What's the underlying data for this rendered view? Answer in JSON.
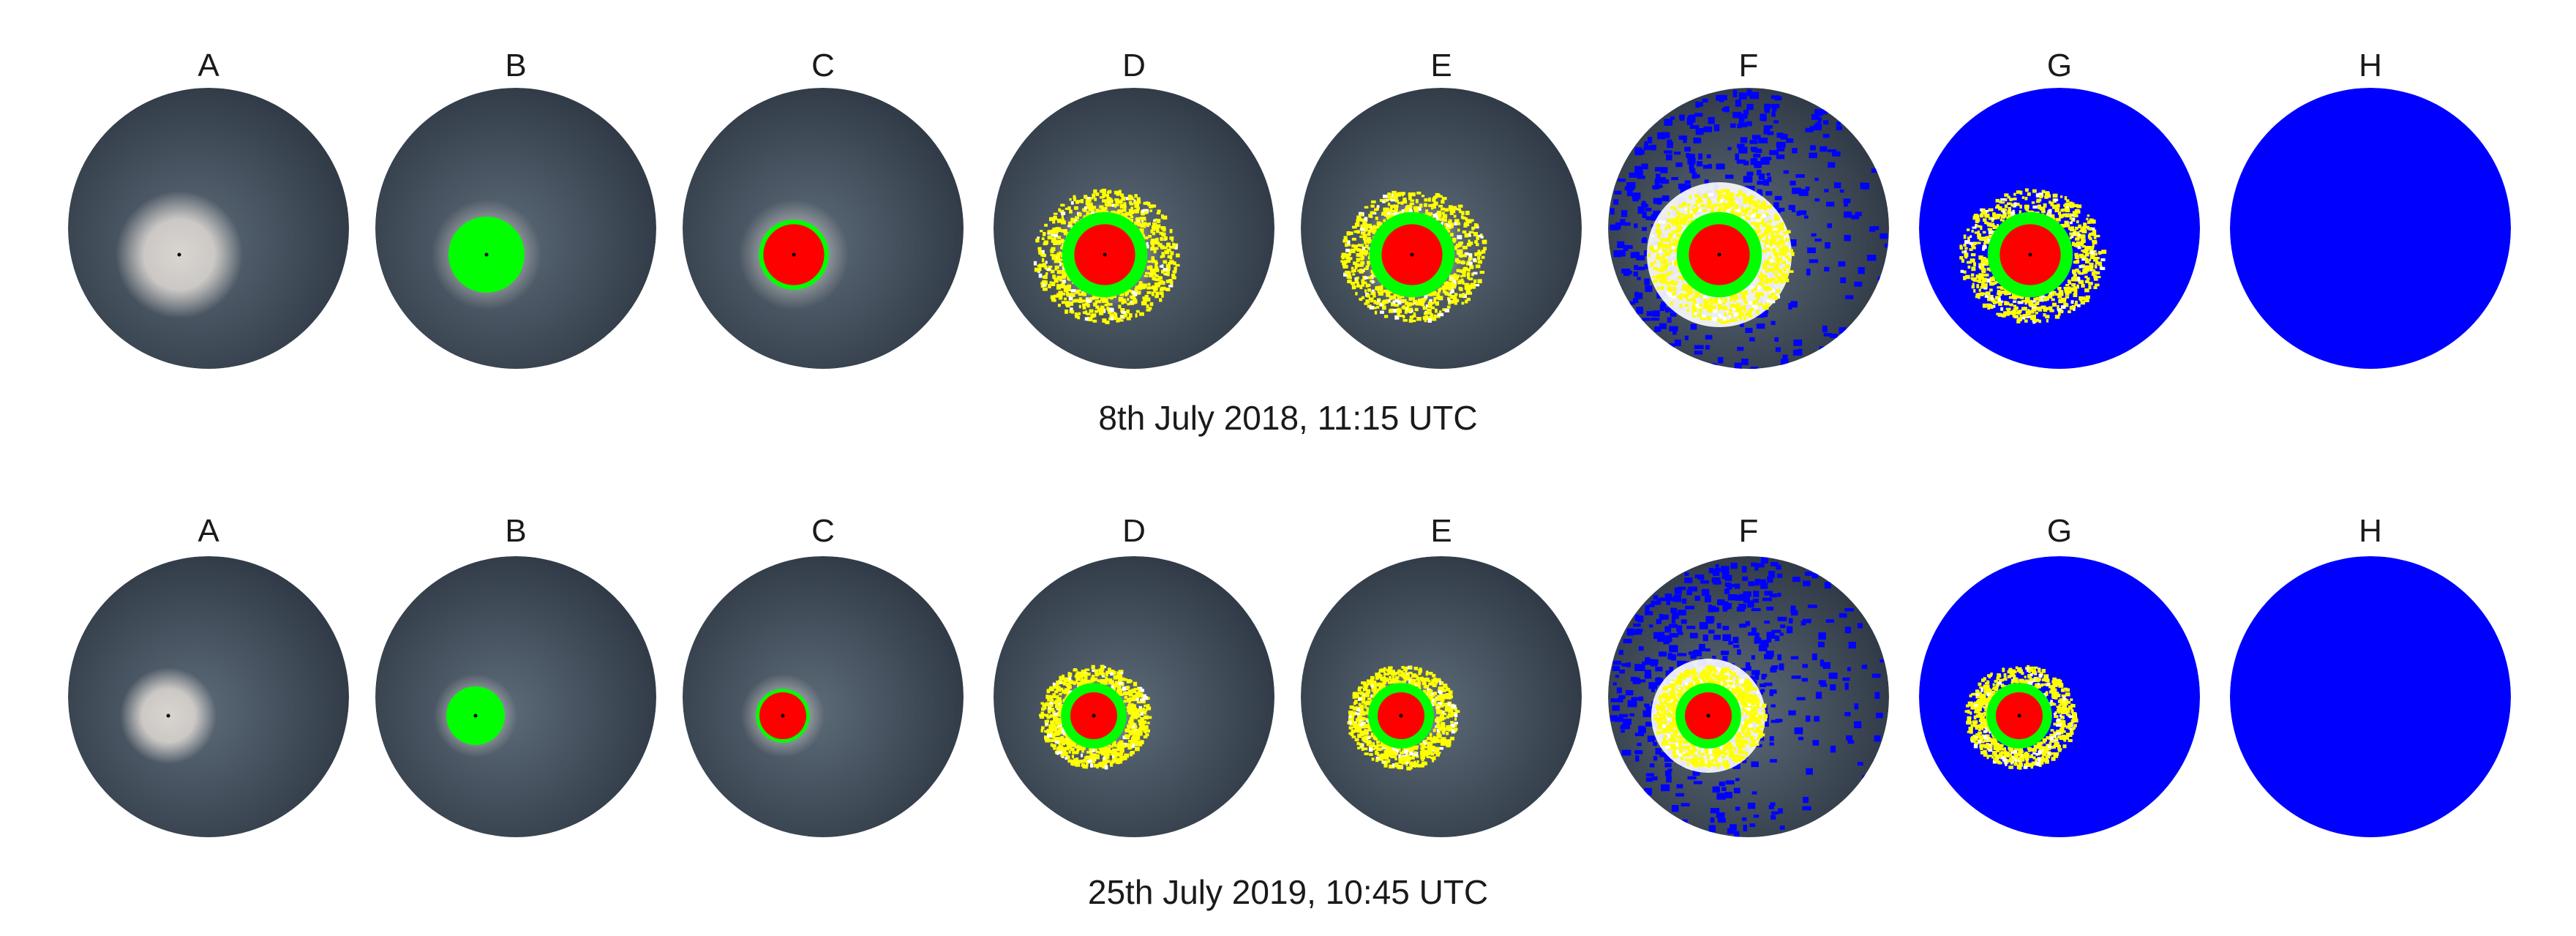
{
  "rows": [
    {
      "caption": "8th July 2018, 11:15 UTC",
      "panels": [
        {
          "label": "A",
          "stage": "raw"
        },
        {
          "label": "B",
          "stage": "green"
        },
        {
          "label": "C",
          "stage": "red"
        },
        {
          "label": "D",
          "stage": "yellow"
        },
        {
          "label": "E",
          "stage": "yellow"
        },
        {
          "label": "F",
          "stage": "speckle"
        },
        {
          "label": "G",
          "stage": "blue_sun"
        },
        {
          "label": "H",
          "stage": "blue"
        }
      ]
    },
    {
      "caption": "25th July 2019, 10:45 UTC",
      "panels": [
        {
          "label": "A",
          "stage": "raw"
        },
        {
          "label": "B",
          "stage": "green"
        },
        {
          "label": "C",
          "stage": "red"
        },
        {
          "label": "D",
          "stage": "yellow"
        },
        {
          "label": "E",
          "stage": "yellow"
        },
        {
          "label": "F",
          "stage": "speckle"
        },
        {
          "label": "G",
          "stage": "blue_sun"
        },
        {
          "label": "H",
          "stage": "blue"
        }
      ]
    }
  ],
  "colors": {
    "sky_center": "#5d6b78",
    "sky_edge": "#2e3844",
    "halo": "#d9d4cf",
    "green": "#00ff00",
    "red": "#ff0000",
    "yellow": "#ffff00",
    "blue": "#0000ff",
    "white": "#ffffff"
  }
}
